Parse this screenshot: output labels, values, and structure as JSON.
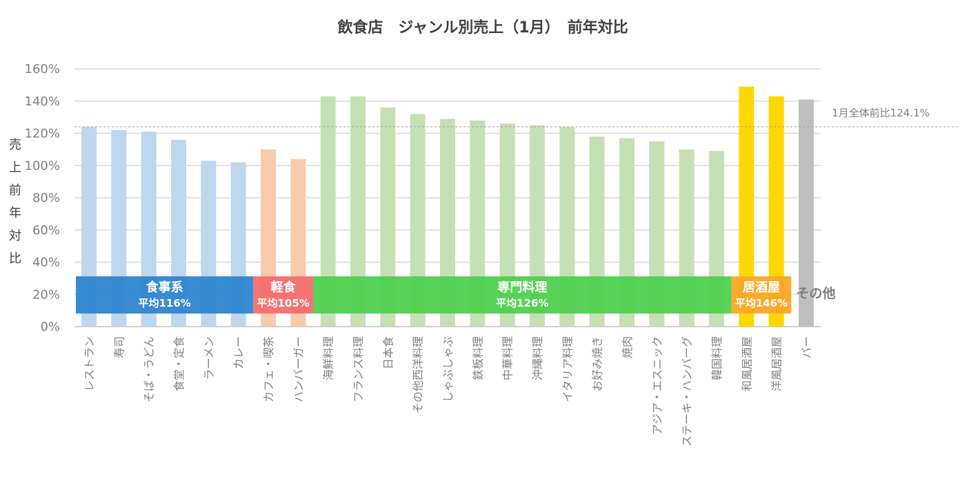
{
  "chart_data": {
    "type": "bar",
    "title": "飲食店　ジャンル別売上（1月）　前年対比",
    "ylabel": "売上前年対比",
    "ylim": [
      0,
      160
    ],
    "yticks": [
      "0%",
      "20%",
      "40%",
      "60%",
      "80%",
      "100%",
      "120%",
      "140%",
      "160%"
    ],
    "grid": true,
    "categories": [
      "レストラン",
      "寿司",
      "そば・うどん",
      "食堂・定食",
      "ラーメン",
      "カレー",
      "カフェ・喫茶",
      "ハンバーガー",
      "海鮮料理",
      "フランス料理",
      "日本食",
      "その他西洋料理",
      "しゃぶしゃぶ",
      "鉄板料理",
      "中華料理",
      "沖縄料理",
      "イタリア料理",
      "お好み焼き",
      "焼肉",
      "アジア・エスニック",
      "ステーキ・ハンバーグ",
      "韓国料理",
      "和風居酒屋",
      "洋風居酒屋",
      "バー"
    ],
    "values": [
      124,
      122,
      121,
      116,
      103,
      102,
      110,
      104,
      143,
      143,
      136,
      132,
      129,
      128,
      126,
      125,
      124,
      118,
      117,
      115,
      110,
      109,
      149,
      143,
      141
    ],
    "bar_colors": [
      "#bdd7ee",
      "#bdd7ee",
      "#bdd7ee",
      "#bdd7ee",
      "#bdd7ee",
      "#bdd7ee",
      "#f8cbad",
      "#f8cbad",
      "#c5e0b4",
      "#c5e0b4",
      "#c5e0b4",
      "#c5e0b4",
      "#c5e0b4",
      "#c5e0b4",
      "#c5e0b4",
      "#c5e0b4",
      "#c5e0b4",
      "#c5e0b4",
      "#c5e0b4",
      "#c5e0b4",
      "#c5e0b4",
      "#c5e0b4",
      "#ffd700",
      "#ffd700",
      "#bfbfbf"
    ],
    "reference_line": {
      "value": 124.1,
      "label": "1月全体前比124.1%"
    },
    "groups": [
      {
        "name": "食事系",
        "average": "平均116%",
        "start": 0,
        "end": 5,
        "color": "#2e86cf"
      },
      {
        "name": "軽食",
        "average": "平均105%",
        "start": 6,
        "end": 7,
        "color": "#f46d6d"
      },
      {
        "name": "専門料理",
        "average": "平均126%",
        "start": 8,
        "end": 21,
        "color": "#4fd14f"
      },
      {
        "name": "居酒屋",
        "average": "平均146%",
        "start": 22,
        "end": 23,
        "color": "#f9a825"
      }
    ],
    "other_label": "その他"
  }
}
